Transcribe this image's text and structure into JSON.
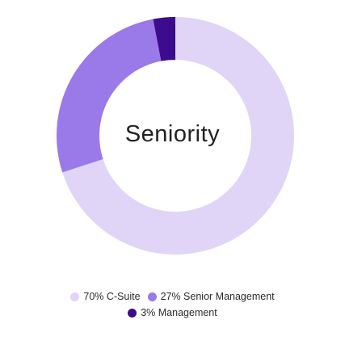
{
  "chart_data": {
    "type": "pie",
    "title": "Seniority",
    "categories": [
      "C-Suite",
      "Senior Management",
      "Management"
    ],
    "values": [
      70,
      27,
      3
    ],
    "legend_labels": [
      "70% C-Suite",
      "27% Senior Management",
      "3% Management"
    ],
    "colors": [
      "#e0d5f7",
      "#9a79e8",
      "#3d0c8c"
    ],
    "legend_placement": "bottom",
    "donut": true
  }
}
